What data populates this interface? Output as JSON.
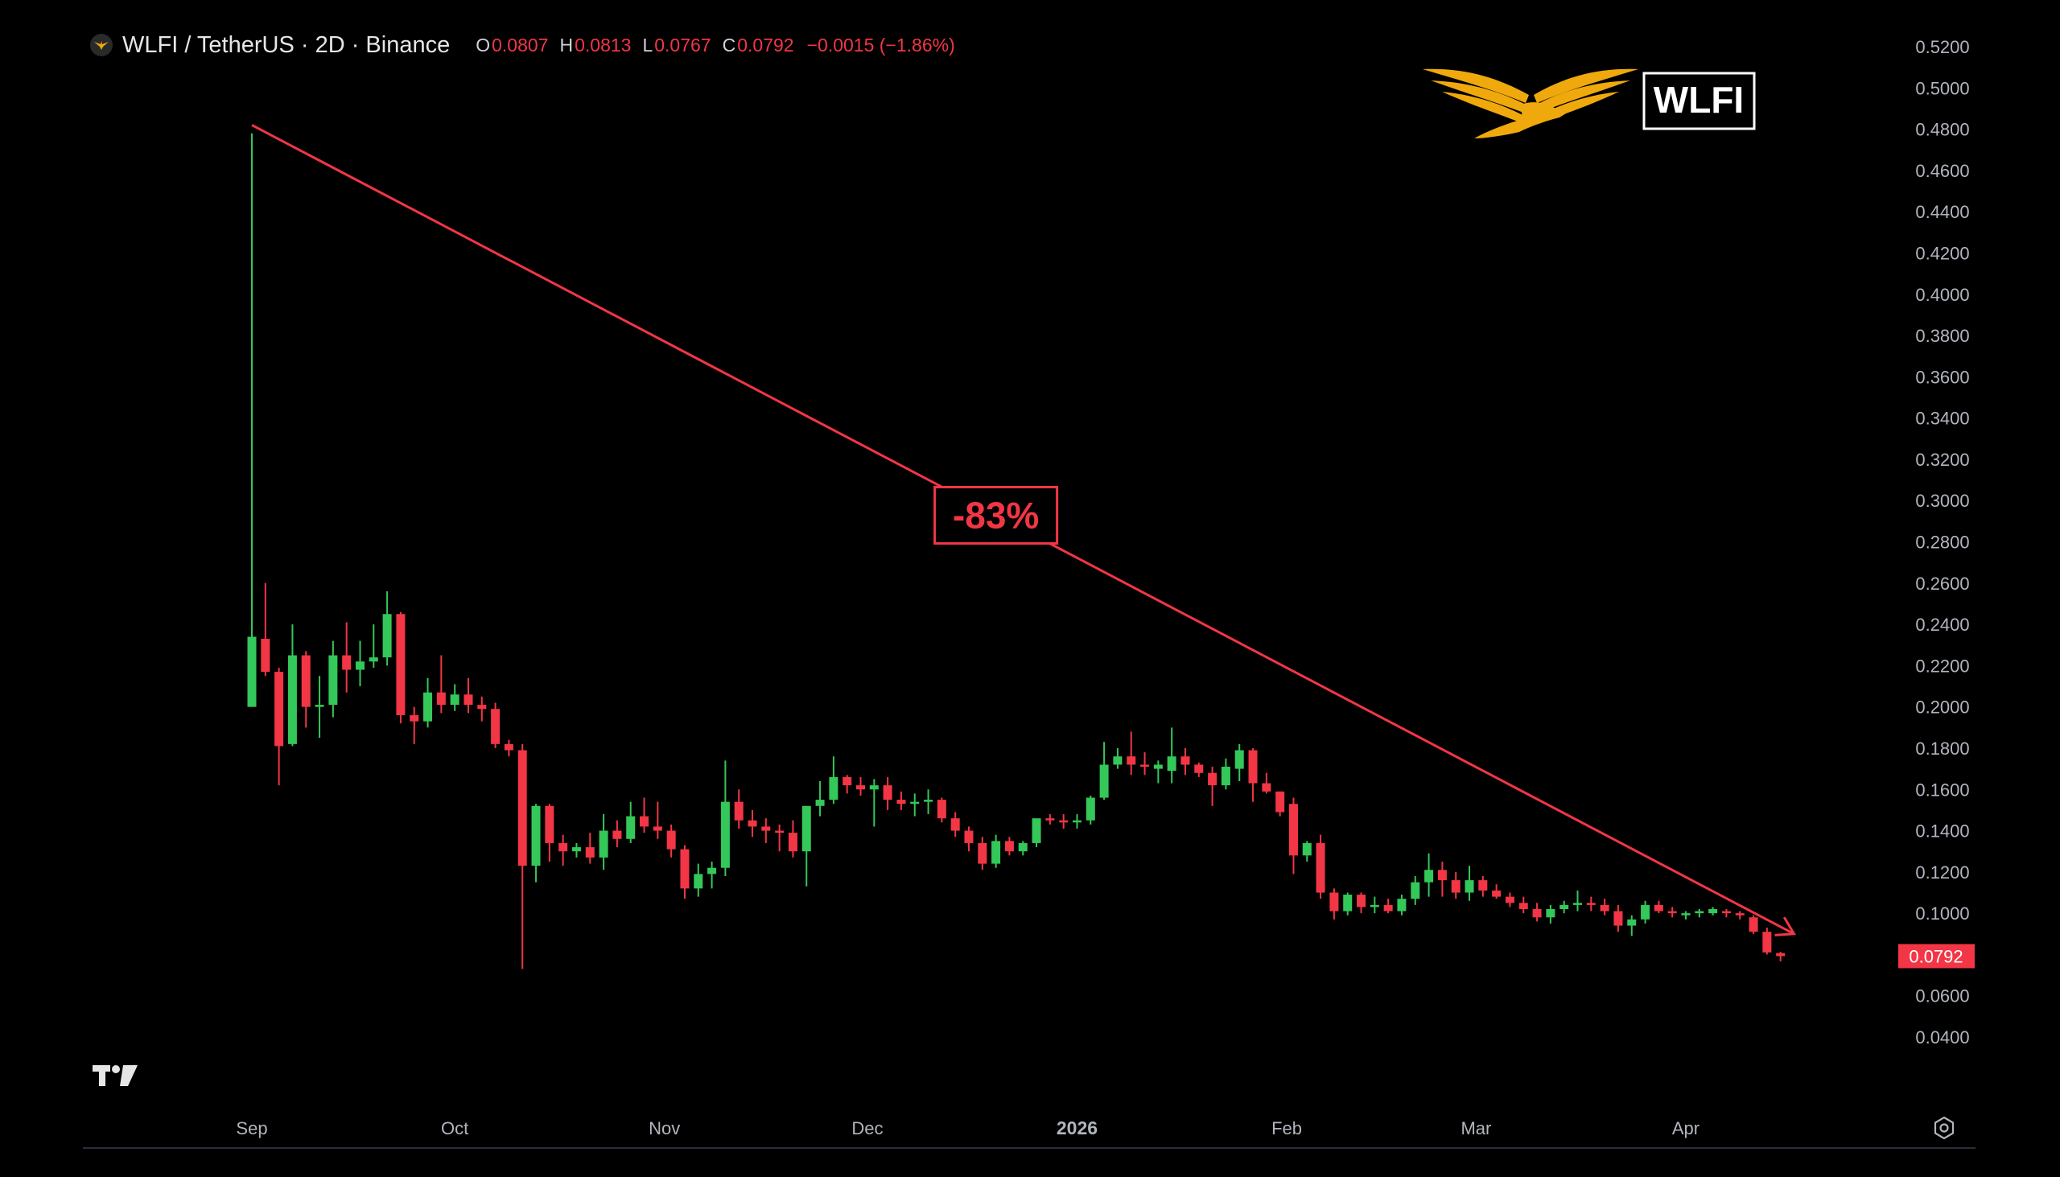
{
  "legend": {
    "title": "WLFI / TetherUS · 2D · Binance",
    "open_label": "O",
    "open": "0.0807",
    "high_label": "H",
    "high": "0.0813",
    "low_label": "L",
    "low": "0.0767",
    "close_label": "C",
    "close": "0.0792",
    "change": "−0.0015 (−1.86%)"
  },
  "brand": {
    "label": "WLFI",
    "logo_color": "#f0a90d"
  },
  "annotation": {
    "label": "-83%",
    "color": "#f23645"
  },
  "last_price_tag": "0.0792",
  "colors": {
    "up": "#34c759",
    "down": "#f23645",
    "background": "#000000",
    "axis_text": "#b2b5be"
  },
  "icons": {
    "symbol": "eagle-icon",
    "tradingview": "tradingview-logo-icon",
    "settings": "settings-gear-icon"
  },
  "chart_data": {
    "type": "candlestick",
    "interval": "2D",
    "y_axis": {
      "position": "right",
      "ylim": [
        0.03,
        0.52
      ],
      "ticks": [
        "0.5200",
        "0.5000",
        "0.4800",
        "0.4600",
        "0.4400",
        "0.4200",
        "0.4000",
        "0.3800",
        "0.3600",
        "0.3400",
        "0.3200",
        "0.3000",
        "0.2800",
        "0.2600",
        "0.2400",
        "0.2200",
        "0.2000",
        "0.1800",
        "0.1600",
        "0.1400",
        "0.1200",
        "0.1000",
        "0.0600",
        "0.0400"
      ]
    },
    "x_axis": {
      "ticks": [
        {
          "label": "Sep",
          "date": "2025-09-01"
        },
        {
          "label": "Oct",
          "date": "2025-10-01"
        },
        {
          "label": "Nov",
          "date": "2025-11-01"
        },
        {
          "label": "Dec",
          "date": "2025-12-01"
        },
        {
          "label": "2026",
          "date": "2026-01-01",
          "bold": true
        },
        {
          "label": "Feb",
          "date": "2026-02-01"
        },
        {
          "label": "Mar",
          "date": "2026-03-01"
        },
        {
          "label": "Apr",
          "date": "2026-04-01"
        }
      ]
    },
    "trendline": {
      "start": {
        "date": "2025-09-01",
        "price": 0.482
      },
      "end": {
        "date": "2026-04-17",
        "price": 0.09
      }
    },
    "candles": [
      {
        "date": "2025-09-01",
        "o": 0.2,
        "h": 0.478,
        "l": 0.2,
        "c": 0.234
      },
      {
        "date": "2025-09-03",
        "o": 0.233,
        "h": 0.26,
        "l": 0.215,
        "c": 0.217
      },
      {
        "date": "2025-09-05",
        "o": 0.217,
        "h": 0.219,
        "l": 0.162,
        "c": 0.181
      },
      {
        "date": "2025-09-07",
        "o": 0.182,
        "h": 0.24,
        "l": 0.181,
        "c": 0.225
      },
      {
        "date": "2025-09-09",
        "o": 0.225,
        "h": 0.227,
        "l": 0.19,
        "c": 0.2
      },
      {
        "date": "2025-09-11",
        "o": 0.2,
        "h": 0.215,
        "l": 0.185,
        "c": 0.201
      },
      {
        "date": "2025-09-13",
        "o": 0.201,
        "h": 0.232,
        "l": 0.195,
        "c": 0.225
      },
      {
        "date": "2025-09-15",
        "o": 0.225,
        "h": 0.241,
        "l": 0.207,
        "c": 0.218
      },
      {
        "date": "2025-09-17",
        "o": 0.218,
        "h": 0.232,
        "l": 0.21,
        "c": 0.222
      },
      {
        "date": "2025-09-19",
        "o": 0.222,
        "h": 0.24,
        "l": 0.219,
        "c": 0.224
      },
      {
        "date": "2025-09-21",
        "o": 0.224,
        "h": 0.256,
        "l": 0.22,
        "c": 0.245
      },
      {
        "date": "2025-09-23",
        "o": 0.245,
        "h": 0.246,
        "l": 0.192,
        "c": 0.196
      },
      {
        "date": "2025-09-25",
        "o": 0.196,
        "h": 0.2,
        "l": 0.182,
        "c": 0.193
      },
      {
        "date": "2025-09-27",
        "o": 0.193,
        "h": 0.214,
        "l": 0.19,
        "c": 0.207
      },
      {
        "date": "2025-09-29",
        "o": 0.207,
        "h": 0.225,
        "l": 0.197,
        "c": 0.201
      },
      {
        "date": "2025-10-01",
        "o": 0.201,
        "h": 0.211,
        "l": 0.198,
        "c": 0.206
      },
      {
        "date": "2025-10-03",
        "o": 0.206,
        "h": 0.214,
        "l": 0.197,
        "c": 0.201
      },
      {
        "date": "2025-10-05",
        "o": 0.201,
        "h": 0.205,
        "l": 0.193,
        "c": 0.199
      },
      {
        "date": "2025-10-07",
        "o": 0.199,
        "h": 0.202,
        "l": 0.18,
        "c": 0.182
      },
      {
        "date": "2025-10-09",
        "o": 0.182,
        "h": 0.184,
        "l": 0.176,
        "c": 0.179
      },
      {
        "date": "2025-10-11",
        "o": 0.179,
        "h": 0.182,
        "l": 0.073,
        "c": 0.123
      },
      {
        "date": "2025-10-13",
        "o": 0.123,
        "h": 0.153,
        "l": 0.115,
        "c": 0.152
      },
      {
        "date": "2025-10-15",
        "o": 0.152,
        "h": 0.153,
        "l": 0.125,
        "c": 0.134
      },
      {
        "date": "2025-10-17",
        "o": 0.134,
        "h": 0.138,
        "l": 0.123,
        "c": 0.13
      },
      {
        "date": "2025-10-19",
        "o": 0.13,
        "h": 0.134,
        "l": 0.127,
        "c": 0.132
      },
      {
        "date": "2025-10-21",
        "o": 0.132,
        "h": 0.139,
        "l": 0.124,
        "c": 0.127
      },
      {
        "date": "2025-10-23",
        "o": 0.127,
        "h": 0.148,
        "l": 0.121,
        "c": 0.14
      },
      {
        "date": "2025-10-25",
        "o": 0.14,
        "h": 0.145,
        "l": 0.132,
        "c": 0.136
      },
      {
        "date": "2025-10-27",
        "o": 0.136,
        "h": 0.154,
        "l": 0.134,
        "c": 0.147
      },
      {
        "date": "2025-10-29",
        "o": 0.147,
        "h": 0.156,
        "l": 0.139,
        "c": 0.142
      },
      {
        "date": "2025-10-31",
        "o": 0.142,
        "h": 0.154,
        "l": 0.136,
        "c": 0.14
      },
      {
        "date": "2025-11-02",
        "o": 0.14,
        "h": 0.143,
        "l": 0.127,
        "c": 0.131
      },
      {
        "date": "2025-11-04",
        "o": 0.131,
        "h": 0.133,
        "l": 0.107,
        "c": 0.112
      },
      {
        "date": "2025-11-06",
        "o": 0.112,
        "h": 0.124,
        "l": 0.108,
        "c": 0.119
      },
      {
        "date": "2025-11-08",
        "o": 0.119,
        "h": 0.125,
        "l": 0.112,
        "c": 0.122
      },
      {
        "date": "2025-11-10",
        "o": 0.122,
        "h": 0.174,
        "l": 0.118,
        "c": 0.154
      },
      {
        "date": "2025-11-12",
        "o": 0.154,
        "h": 0.16,
        "l": 0.141,
        "c": 0.145
      },
      {
        "date": "2025-11-14",
        "o": 0.145,
        "h": 0.15,
        "l": 0.137,
        "c": 0.142
      },
      {
        "date": "2025-11-16",
        "o": 0.142,
        "h": 0.146,
        "l": 0.134,
        "c": 0.14
      },
      {
        "date": "2025-11-18",
        "o": 0.14,
        "h": 0.143,
        "l": 0.13,
        "c": 0.139
      },
      {
        "date": "2025-11-20",
        "o": 0.139,
        "h": 0.145,
        "l": 0.127,
        "c": 0.13
      },
      {
        "date": "2025-11-22",
        "o": 0.13,
        "h": 0.152,
        "l": 0.113,
        "c": 0.152
      },
      {
        "date": "2025-11-24",
        "o": 0.152,
        "h": 0.164,
        "l": 0.147,
        "c": 0.155
      },
      {
        "date": "2025-11-26",
        "o": 0.155,
        "h": 0.176,
        "l": 0.153,
        "c": 0.166
      },
      {
        "date": "2025-11-28",
        "o": 0.166,
        "h": 0.167,
        "l": 0.158,
        "c": 0.162
      },
      {
        "date": "2025-11-30",
        "o": 0.162,
        "h": 0.166,
        "l": 0.157,
        "c": 0.16
      },
      {
        "date": "2025-12-02",
        "o": 0.16,
        "h": 0.165,
        "l": 0.142,
        "c": 0.162
      },
      {
        "date": "2025-12-04",
        "o": 0.162,
        "h": 0.166,
        "l": 0.15,
        "c": 0.155
      },
      {
        "date": "2025-12-06",
        "o": 0.155,
        "h": 0.159,
        "l": 0.15,
        "c": 0.153
      },
      {
        "date": "2025-12-08",
        "o": 0.153,
        "h": 0.158,
        "l": 0.147,
        "c": 0.154
      },
      {
        "date": "2025-12-10",
        "o": 0.154,
        "h": 0.16,
        "l": 0.148,
        "c": 0.155
      },
      {
        "date": "2025-12-12",
        "o": 0.155,
        "h": 0.156,
        "l": 0.144,
        "c": 0.146
      },
      {
        "date": "2025-12-14",
        "o": 0.146,
        "h": 0.149,
        "l": 0.137,
        "c": 0.14
      },
      {
        "date": "2025-12-16",
        "o": 0.14,
        "h": 0.142,
        "l": 0.13,
        "c": 0.134
      },
      {
        "date": "2025-12-18",
        "o": 0.134,
        "h": 0.137,
        "l": 0.121,
        "c": 0.124
      },
      {
        "date": "2025-12-20",
        "o": 0.124,
        "h": 0.138,
        "l": 0.122,
        "c": 0.135
      },
      {
        "date": "2025-12-22",
        "o": 0.135,
        "h": 0.137,
        "l": 0.128,
        "c": 0.13
      },
      {
        "date": "2025-12-24",
        "o": 0.13,
        "h": 0.135,
        "l": 0.128,
        "c": 0.134
      },
      {
        "date": "2025-12-26",
        "o": 0.134,
        "h": 0.145,
        "l": 0.132,
        "c": 0.146
      },
      {
        "date": "2025-12-28",
        "o": 0.146,
        "h": 0.148,
        "l": 0.143,
        "c": 0.145
      },
      {
        "date": "2025-12-30",
        "o": 0.145,
        "h": 0.148,
        "l": 0.141,
        "c": 0.144
      },
      {
        "date": "2026-01-01",
        "o": 0.144,
        "h": 0.148,
        "l": 0.141,
        "c": 0.145
      },
      {
        "date": "2026-01-03",
        "o": 0.145,
        "h": 0.157,
        "l": 0.143,
        "c": 0.156
      },
      {
        "date": "2026-01-05",
        "o": 0.156,
        "h": 0.183,
        "l": 0.155,
        "c": 0.172
      },
      {
        "date": "2026-01-07",
        "o": 0.172,
        "h": 0.18,
        "l": 0.17,
        "c": 0.176
      },
      {
        "date": "2026-01-09",
        "o": 0.176,
        "h": 0.188,
        "l": 0.167,
        "c": 0.172
      },
      {
        "date": "2026-01-11",
        "o": 0.172,
        "h": 0.178,
        "l": 0.167,
        "c": 0.171
      },
      {
        "date": "2026-01-13",
        "o": 0.17,
        "h": 0.174,
        "l": 0.163,
        "c": 0.172
      },
      {
        "date": "2026-01-15",
        "o": 0.169,
        "h": 0.19,
        "l": 0.163,
        "c": 0.176
      },
      {
        "date": "2026-01-17",
        "o": 0.176,
        "h": 0.18,
        "l": 0.167,
        "c": 0.172
      },
      {
        "date": "2026-01-19",
        "o": 0.172,
        "h": 0.173,
        "l": 0.166,
        "c": 0.168
      },
      {
        "date": "2026-01-21",
        "o": 0.168,
        "h": 0.171,
        "l": 0.152,
        "c": 0.162
      },
      {
        "date": "2026-01-23",
        "o": 0.162,
        "h": 0.175,
        "l": 0.16,
        "c": 0.171
      },
      {
        "date": "2026-01-25",
        "o": 0.17,
        "h": 0.182,
        "l": 0.164,
        "c": 0.179
      },
      {
        "date": "2026-01-27",
        "o": 0.179,
        "h": 0.18,
        "l": 0.154,
        "c": 0.163
      },
      {
        "date": "2026-01-29",
        "o": 0.163,
        "h": 0.168,
        "l": 0.158,
        "c": 0.159
      },
      {
        "date": "2026-01-31",
        "o": 0.159,
        "h": 0.159,
        "l": 0.147,
        "c": 0.149
      },
      {
        "date": "2026-02-02",
        "o": 0.153,
        "h": 0.156,
        "l": 0.119,
        "c": 0.128
      },
      {
        "date": "2026-02-04",
        "o": 0.128,
        "h": 0.135,
        "l": 0.125,
        "c": 0.134
      },
      {
        "date": "2026-02-06",
        "o": 0.134,
        "h": 0.138,
        "l": 0.107,
        "c": 0.11
      },
      {
        "date": "2026-02-08",
        "o": 0.11,
        "h": 0.112,
        "l": 0.097,
        "c": 0.101
      },
      {
        "date": "2026-02-10",
        "o": 0.101,
        "h": 0.11,
        "l": 0.099,
        "c": 0.109
      },
      {
        "date": "2026-02-12",
        "o": 0.109,
        "h": 0.11,
        "l": 0.1,
        "c": 0.103
      },
      {
        "date": "2026-02-14",
        "o": 0.103,
        "h": 0.108,
        "l": 0.1,
        "c": 0.104
      },
      {
        "date": "2026-02-16",
        "o": 0.104,
        "h": 0.107,
        "l": 0.1,
        "c": 0.101
      },
      {
        "date": "2026-02-18",
        "o": 0.101,
        "h": 0.109,
        "l": 0.099,
        "c": 0.107
      },
      {
        "date": "2026-02-20",
        "o": 0.107,
        "h": 0.118,
        "l": 0.104,
        "c": 0.115
      },
      {
        "date": "2026-02-22",
        "o": 0.115,
        "h": 0.129,
        "l": 0.108,
        "c": 0.121
      },
      {
        "date": "2026-02-24",
        "o": 0.121,
        "h": 0.125,
        "l": 0.108,
        "c": 0.116
      },
      {
        "date": "2026-02-26",
        "o": 0.116,
        "h": 0.12,
        "l": 0.107,
        "c": 0.11
      },
      {
        "date": "2026-02-28",
        "o": 0.11,
        "h": 0.123,
        "l": 0.106,
        "c": 0.116
      },
      {
        "date": "2026-03-02",
        "o": 0.116,
        "h": 0.118,
        "l": 0.108,
        "c": 0.111
      },
      {
        "date": "2026-03-04",
        "o": 0.111,
        "h": 0.114,
        "l": 0.107,
        "c": 0.108
      },
      {
        "date": "2026-03-06",
        "o": 0.108,
        "h": 0.11,
        "l": 0.103,
        "c": 0.105
      },
      {
        "date": "2026-03-08",
        "o": 0.105,
        "h": 0.108,
        "l": 0.1,
        "c": 0.102
      },
      {
        "date": "2026-03-10",
        "o": 0.102,
        "h": 0.105,
        "l": 0.096,
        "c": 0.098
      },
      {
        "date": "2026-03-12",
        "o": 0.098,
        "h": 0.104,
        "l": 0.095,
        "c": 0.102
      },
      {
        "date": "2026-03-14",
        "o": 0.102,
        "h": 0.106,
        "l": 0.1,
        "c": 0.104
      },
      {
        "date": "2026-03-16",
        "o": 0.104,
        "h": 0.111,
        "l": 0.101,
        "c": 0.105
      },
      {
        "date": "2026-03-18",
        "o": 0.105,
        "h": 0.108,
        "l": 0.101,
        "c": 0.104
      },
      {
        "date": "2026-03-20",
        "o": 0.104,
        "h": 0.107,
        "l": 0.099,
        "c": 0.101
      },
      {
        "date": "2026-03-22",
        "o": 0.101,
        "h": 0.104,
        "l": 0.091,
        "c": 0.094
      },
      {
        "date": "2026-03-24",
        "o": 0.094,
        "h": 0.099,
        "l": 0.089,
        "c": 0.097
      },
      {
        "date": "2026-03-26",
        "o": 0.097,
        "h": 0.106,
        "l": 0.095,
        "c": 0.104
      },
      {
        "date": "2026-03-28",
        "o": 0.104,
        "h": 0.106,
        "l": 0.1,
        "c": 0.101
      },
      {
        "date": "2026-03-30",
        "o": 0.101,
        "h": 0.103,
        "l": 0.098,
        "c": 0.1
      },
      {
        "date": "2026-04-01",
        "o": 0.099,
        "h": 0.101,
        "l": 0.097,
        "c": 0.1
      },
      {
        "date": "2026-04-03",
        "o": 0.1,
        "h": 0.102,
        "l": 0.098,
        "c": 0.101
      },
      {
        "date": "2026-04-05",
        "o": 0.1,
        "h": 0.103,
        "l": 0.099,
        "c": 0.102
      },
      {
        "date": "2026-04-07",
        "o": 0.101,
        "h": 0.102,
        "l": 0.098,
        "c": 0.1
      },
      {
        "date": "2026-04-09",
        "o": 0.1,
        "h": 0.101,
        "l": 0.097,
        "c": 0.099
      },
      {
        "date": "2026-04-11",
        "o": 0.098,
        "h": 0.099,
        "l": 0.09,
        "c": 0.091
      },
      {
        "date": "2026-04-13",
        "o": 0.091,
        "h": 0.093,
        "l": 0.08,
        "c": 0.081
      },
      {
        "date": "2026-04-15",
        "o": 0.0807,
        "h": 0.0813,
        "l": 0.0767,
        "c": 0.0792
      }
    ]
  }
}
